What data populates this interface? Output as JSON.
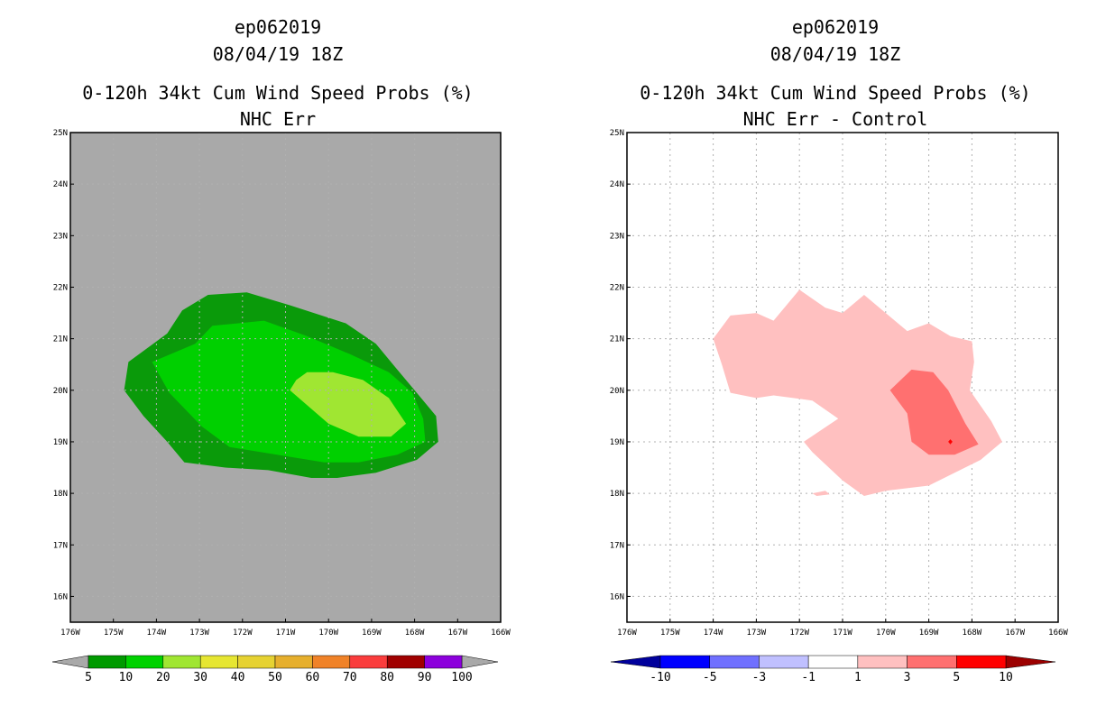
{
  "chart_data": [
    {
      "type": "contour_map",
      "storm_id": "ep062019",
      "datetime": "08/04/19 18Z",
      "title": "0-120h 34kt Cum Wind Speed Probs (%)",
      "subtitle": "NHC Err",
      "lon_range": [
        -176,
        -166
      ],
      "lat_range": [
        15.5,
        25
      ],
      "lon_ticks": [
        "176W",
        "175W",
        "174W",
        "173W",
        "172W",
        "171W",
        "170W",
        "169W",
        "168W",
        "167W",
        "166W"
      ],
      "lat_ticks": [
        "16N",
        "17N",
        "18N",
        "19N",
        "20N",
        "21N",
        "22N",
        "23N",
        "24N",
        "25N"
      ],
      "background_color": "#a9a9a9",
      "contours": [
        {
          "level": "5-10",
          "color": "#0a9a0a",
          "lonlat": [
            [
              -173.75,
              21.1
            ],
            [
              -173.4,
              21.55
            ],
            [
              -172.8,
              21.85
            ],
            [
              -171.9,
              21.9
            ],
            [
              -170.9,
              21.65
            ],
            [
              -169.6,
              21.3
            ],
            [
              -168.9,
              20.9
            ],
            [
              -168.45,
              20.45
            ],
            [
              -167.9,
              19.9
            ],
            [
              -167.5,
              19.5
            ],
            [
              -167.45,
              19.0
            ],
            [
              -167.95,
              18.65
            ],
            [
              -168.9,
              18.4
            ],
            [
              -169.8,
              18.3
            ],
            [
              -170.4,
              18.3
            ],
            [
              -171.4,
              18.45
            ],
            [
              -172.4,
              18.5
            ],
            [
              -173.35,
              18.6
            ],
            [
              -173.75,
              19.0
            ],
            [
              -174.3,
              19.5
            ],
            [
              -174.75,
              20.0
            ],
            [
              -174.65,
              20.55
            ]
          ]
        },
        {
          "level": "10-20",
          "color": "#00d000",
          "lonlat": [
            [
              -173.1,
              20.9
            ],
            [
              -172.7,
              21.25
            ],
            [
              -171.5,
              21.35
            ],
            [
              -170.5,
              21.05
            ],
            [
              -169.5,
              20.7
            ],
            [
              -168.6,
              20.35
            ],
            [
              -168.05,
              19.95
            ],
            [
              -167.8,
              19.45
            ],
            [
              -167.75,
              19.0
            ],
            [
              -168.4,
              18.75
            ],
            [
              -169.3,
              18.6
            ],
            [
              -170.1,
              18.6
            ],
            [
              -171.2,
              18.75
            ],
            [
              -172.3,
              18.9
            ],
            [
              -172.95,
              19.3
            ],
            [
              -173.7,
              19.95
            ],
            [
              -174.1,
              20.55
            ]
          ]
        },
        {
          "level": "20-30",
          "color": "#a0e632",
          "lonlat": [
            [
              -170.5,
              20.35
            ],
            [
              -169.9,
              20.35
            ],
            [
              -169.2,
              20.2
            ],
            [
              -168.6,
              19.85
            ],
            [
              -168.2,
              19.35
            ],
            [
              -168.55,
              19.1
            ],
            [
              -169.3,
              19.1
            ],
            [
              -170.0,
              19.35
            ],
            [
              -170.9,
              20.0
            ],
            [
              -170.75,
              20.2
            ]
          ]
        }
      ],
      "colorbar": {
        "labels": [
          "5",
          "10",
          "20",
          "30",
          "40",
          "50",
          "60",
          "70",
          "80",
          "90",
          "100"
        ],
        "colors": [
          "#009a00",
          "#00d200",
          "#a0e632",
          "#e6e632",
          "#e6d232",
          "#e6af2d",
          "#f08228",
          "#fa3c3c",
          "#a00000",
          "#8c00dc"
        ]
      }
    },
    {
      "type": "contour_map",
      "storm_id": "ep062019",
      "datetime": "08/04/19 18Z",
      "title": "0-120h 34kt Cum Wind Speed Probs (%)",
      "subtitle": "NHC Err - Control",
      "lon_range": [
        -176,
        -166
      ],
      "lat_range": [
        15.5,
        25
      ],
      "lon_ticks": [
        "176W",
        "175W",
        "174W",
        "173W",
        "172W",
        "171W",
        "170W",
        "169W",
        "168W",
        "167W",
        "166W"
      ],
      "lat_ticks": [
        "16N",
        "17N",
        "18N",
        "19N",
        "20N",
        "21N",
        "22N",
        "23N",
        "24N",
        "25N"
      ],
      "background_color": "#ffffff",
      "grid": "dotted",
      "contours": [
        {
          "level": "1-3",
          "color": "#ffc0c0",
          "lonlat": [
            [
              -174.0,
              21.0
            ],
            [
              -173.6,
              21.45
            ],
            [
              -173.0,
              21.5
            ],
            [
              -172.6,
              21.35
            ],
            [
              -172.0,
              21.95
            ],
            [
              -171.4,
              21.6
            ],
            [
              -171.0,
              21.5
            ],
            [
              -170.5,
              21.85
            ],
            [
              -170.0,
              21.5
            ],
            [
              -169.5,
              21.15
            ],
            [
              -169.0,
              21.3
            ],
            [
              -168.5,
              21.05
            ],
            [
              -168.0,
              20.95
            ],
            [
              -167.95,
              20.55
            ],
            [
              -168.05,
              20.0
            ],
            [
              -167.55,
              19.4
            ],
            [
              -167.3,
              19.0
            ],
            [
              -167.8,
              18.65
            ],
            [
              -169.0,
              18.15
            ],
            [
              -170.0,
              18.05
            ],
            [
              -170.5,
              17.95
            ],
            [
              -171.0,
              18.25
            ],
            [
              -171.7,
              18.8
            ],
            [
              -171.9,
              19.0
            ],
            [
              -171.1,
              19.45
            ],
            [
              -171.7,
              19.8
            ],
            [
              -172.6,
              19.9
            ],
            [
              -173.0,
              19.85
            ],
            [
              -173.6,
              19.95
            ],
            [
              -173.8,
              20.5
            ]
          ]
        },
        {
          "level": "3-5",
          "color": "#ff7070",
          "lonlat": [
            [
              -169.9,
              20.0
            ],
            [
              -169.4,
              20.4
            ],
            [
              -168.9,
              20.35
            ],
            [
              -168.55,
              20.0
            ],
            [
              -168.15,
              19.35
            ],
            [
              -167.85,
              18.95
            ],
            [
              -168.4,
              18.75
            ],
            [
              -169.0,
              18.75
            ],
            [
              -169.4,
              19.0
            ],
            [
              -169.5,
              19.55
            ]
          ]
        },
        {
          "level": "5-10",
          "color": "#ff0000",
          "lonlat": [
            [
              -168.5,
              19.05
            ],
            [
              -168.45,
              19.0
            ],
            [
              -168.5,
              18.95
            ],
            [
              -168.55,
              19.0
            ]
          ]
        },
        {
          "level": "1-3",
          "color": "#ffc0c0",
          "lonlat": [
            [
              -171.7,
              18.0
            ],
            [
              -171.4,
              18.05
            ],
            [
              -171.3,
              17.98
            ],
            [
              -171.6,
              17.95
            ]
          ]
        }
      ],
      "colorbar": {
        "labels": [
          "-10",
          "-5",
          "-3",
          "-1",
          "1",
          "3",
          "5",
          "10"
        ],
        "colors": [
          "#00009c",
          "#0000ff",
          "#7070ff",
          "#c0c0ff",
          "#ffffff",
          "#ffc0c0",
          "#ff7070",
          "#ff0000",
          "#9c0000"
        ]
      }
    }
  ]
}
